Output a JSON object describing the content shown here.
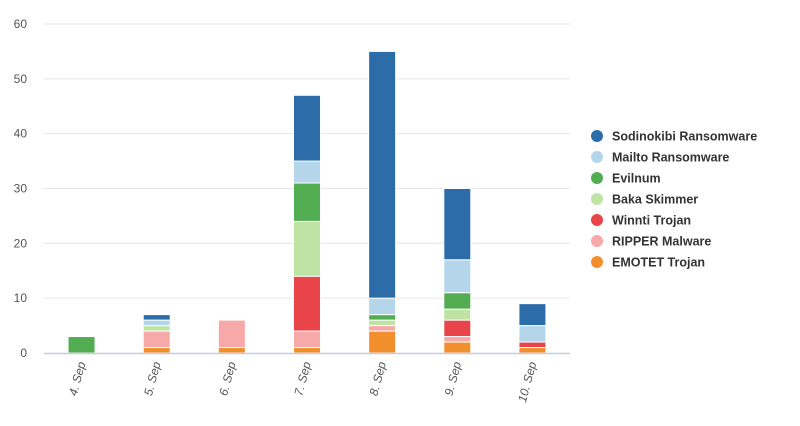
{
  "chart_data": {
    "type": "bar",
    "stacked": true,
    "title": "",
    "xlabel": "",
    "ylabel": "",
    "ylim": [
      0,
      60
    ],
    "yticks": [
      0,
      10,
      20,
      30,
      40,
      50,
      60
    ],
    "grid": true,
    "legend_position": "right",
    "categories": [
      "4. Sep",
      "5. Sep",
      "6. Sep",
      "7. Sep",
      "8. Sep",
      "9. Sep",
      "10. Sep"
    ],
    "series": [
      {
        "name": "EMOTET Trojan",
        "color": "#f28f2d",
        "values": [
          0,
          1,
          1,
          1,
          4,
          2,
          1
        ]
      },
      {
        "name": "RIPPER Malware",
        "color": "#f7a8a8",
        "values": [
          0,
          3,
          5,
          3,
          1,
          1,
          0
        ]
      },
      {
        "name": "Winnti Trojan",
        "color": "#e8444a",
        "values": [
          0,
          0,
          0,
          10,
          0,
          3,
          1
        ]
      },
      {
        "name": "Baka Skimmer",
        "color": "#bfe3a4",
        "values": [
          0,
          1,
          0,
          10,
          1,
          2,
          0
        ]
      },
      {
        "name": "Evilnum",
        "color": "#52ad52",
        "values": [
          3,
          0,
          0,
          7,
          1,
          3,
          0
        ]
      },
      {
        "name": "Mailto Ransomware",
        "color": "#b5d5ea",
        "values": [
          0,
          1,
          0,
          4,
          3,
          6,
          3
        ]
      },
      {
        "name": "Sodinokibi Ransomware",
        "color": "#2b6ca9",
        "values": [
          0,
          1,
          0,
          12,
          45,
          13,
          4
        ]
      }
    ],
    "legend_order": [
      "Sodinokibi Ransomware",
      "Mailto Ransomware",
      "Evilnum",
      "Baka Skimmer",
      "Winnti Trojan",
      "RIPPER Malware",
      "EMOTET Trojan"
    ]
  }
}
